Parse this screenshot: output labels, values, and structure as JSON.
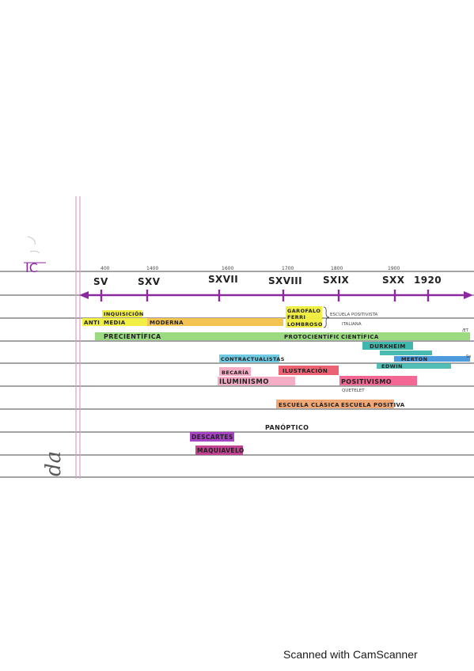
{
  "header": {
    "ic": "IC",
    "side_text": "da"
  },
  "timeline": {
    "years": [
      "400",
      "1400",
      "1600",
      "1700",
      "1800",
      "1900"
    ],
    "centuries": [
      "SV",
      "SXV",
      "SXVII",
      "SXVIII",
      "SXIX",
      "SXX",
      "1920"
    ],
    "right_marks": [
      "/ET",
      "So"
    ]
  },
  "bars": {
    "inquisicion": "INQUISICIÓN",
    "anti": "ANTI",
    "media": "MEDIA",
    "moderna": "MODERNA",
    "garofalo": "GAROFALO",
    "ferri": "FERRI",
    "lombroso": "LOMBROSO",
    "escuela_positivista": "ESCUELA POSITIVISTA",
    "italiana": "ITALIANA",
    "precientifica": "PRECIENTÍFICA",
    "protocientifica": "PROTOCIENTÍFICA",
    "cientifica": "CIENTÍFICA",
    "durkheim": "DURKHEIM",
    "merton": "MERTON",
    "edwin": "EDWIN",
    "contractualistas": "CONTRACTUALISTAS",
    "beccaria": "BECARÍA",
    "ilustracion": "ILUSTRACIÓN",
    "iluminismo": "ILUMINISMO",
    "positivismo": "POSITIVISMO",
    "quetelet": "QUETELET",
    "escuela_clasica": "ESCUELA CLÁSICA",
    "escuela_positiva": "ESCUELA POSITIVA",
    "panoptico": "PANÓPTICO",
    "descartes": "DESCARTES",
    "maquiavelo": "MAQUIAVELO"
  },
  "footer": {
    "scanner": "Scanned with CamScanner"
  },
  "colors": {
    "margin_line": "#d9a0c8",
    "rule_line": "#444444",
    "axis": "#8b2a9e",
    "yellow": "#f1ee3a",
    "orange": "#f2c148",
    "green": "#96d87a",
    "teal": "#35b3a8",
    "blue": "#3a8fd8",
    "cyan": "#67c7e2",
    "pink": "#f4a8c2",
    "red": "#ec5a6b",
    "hotpink": "#f25f8f",
    "salmon": "#f1a36e",
    "purple": "#a23ac1",
    "magenta": "#bd3a8a"
  }
}
